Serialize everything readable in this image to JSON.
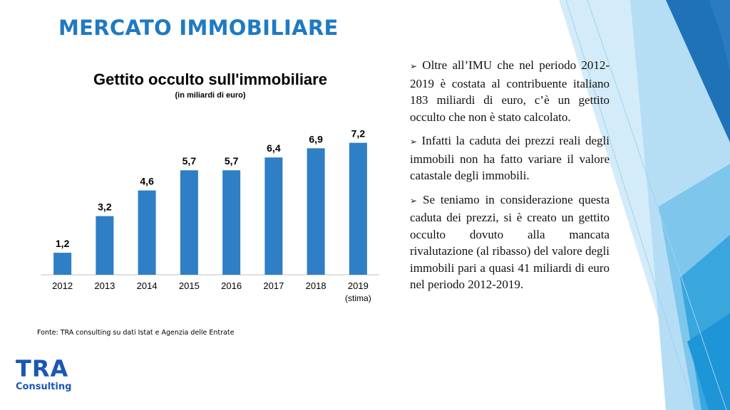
{
  "slide": {
    "title": "MERCATO IMMOBILIARE",
    "source": "Fonte: TRA consulting su dati Istat e Agenzia delle Entrate",
    "logo": {
      "main": "TRA",
      "sub": "Consulting"
    },
    "bullets": [
      {
        "marker": "➢",
        "text": "Oltre all’IMU che nel periodo 2012-2019 è costata al contribuente italiano 183 miliardi di euro, c’è un gettito occulto che non è stato calcolato."
      },
      {
        "marker": "➢",
        "text": "Infatti la caduta dei prezzi reali degli immobili non ha fatto variare il valore catastale degli immobili."
      },
      {
        "marker": "➢",
        "text": "Se teniamo in considerazione questa caduta dei prezzi, si è creato un gettito occulto dovuto alla mancata rivalutazione (al ribasso) del valore degli immobili pari a quasi 41 miliardi di euro nel periodo 2012-2019."
      }
    ]
  },
  "colors": {
    "bar": "#2e7fc5",
    "title": "#1f7ac2",
    "logo": "#1a57b5"
  },
  "chart_data": {
    "type": "bar",
    "title": "Gettito occulto sull'immobiliare",
    "subtitle": "(in miliardi di euro)",
    "categories": [
      "2012",
      "2013",
      "2014",
      "2015",
      "2016",
      "2017",
      "2018",
      "2019"
    ],
    "category_notes": [
      "",
      "",
      "",
      "",
      "",
      "",
      "",
      "(stima)"
    ],
    "values": [
      1.2,
      3.2,
      4.6,
      5.7,
      5.7,
      6.4,
      6.9,
      7.2
    ],
    "value_labels": [
      "1,2",
      "3,2",
      "4,6",
      "5,7",
      "5,7",
      "6,4",
      "6,9",
      "7,2"
    ],
    "ylim": [
      0,
      8
    ],
    "grid": false,
    "legend": "none"
  }
}
